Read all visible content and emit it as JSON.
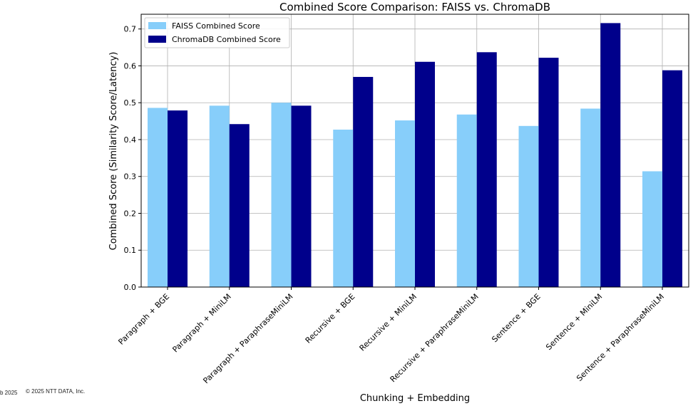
{
  "chart_data": {
    "type": "bar",
    "title": "Combined Score Comparison: FAISS vs. ChromaDB",
    "xlabel": "Chunking + Embedding",
    "ylabel": "Combined Score (Similarity Score/Latency)",
    "ylim": [
      0,
      0.74
    ],
    "yticks": [
      "0.0",
      "0.1",
      "0.2",
      "0.3",
      "0.4",
      "0.5",
      "0.6",
      "0.7"
    ],
    "grid": true,
    "legend_position": "top-left",
    "categories": [
      "Paragraph + BGE",
      "Paragraph + MiniLM",
      "Paragraph + ParaphraseMiniLM",
      "Recursive + BGE",
      "Recursive + MiniLM",
      "Recursive + ParaphraseMiniLM",
      "Sentence + BGE",
      "Sentence + MiniLM",
      "Sentence + ParaphraseMiniLM"
    ],
    "series": [
      {
        "name": "FAISS Combined Score",
        "color": "#87cefa",
        "values": [
          0.486,
          0.492,
          0.5,
          0.427,
          0.452,
          0.468,
          0.437,
          0.484,
          0.314
        ]
      },
      {
        "name": "ChromaDB Combined Score",
        "color": "#00008b",
        "values": [
          0.479,
          0.442,
          0.492,
          0.57,
          0.611,
          0.637,
          0.622,
          0.716,
          0.588
        ]
      }
    ]
  },
  "footer": {
    "date": "b 2025",
    "copyright": "© 2025 NTT DATA, Inc."
  }
}
